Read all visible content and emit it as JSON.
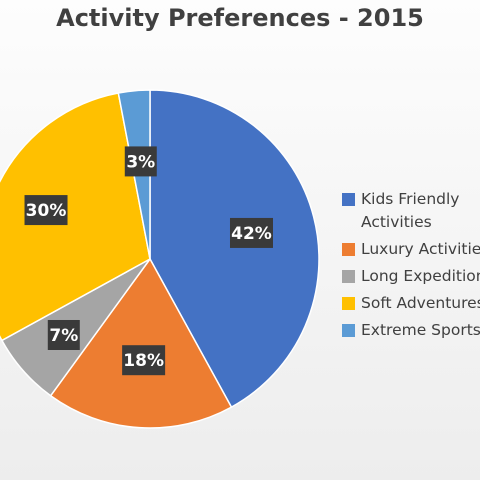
{
  "chart_data": {
    "type": "pie",
    "title": "Activity Preferences - 2015",
    "categories": [
      "Kids Friendly Activities",
      "Luxury Activities",
      "Long Expeditions",
      "Soft Adventures",
      "Extreme Sports"
    ],
    "values": [
      42,
      18,
      7,
      30,
      3
    ],
    "data_labels": [
      "42%",
      "18%",
      "7%",
      "30%",
      "3%"
    ],
    "colors": [
      "#4472C4",
      "#ED7D31",
      "#A5A5A5",
      "#FFC000",
      "#5B9BD5"
    ],
    "legend_position": "right",
    "start_angle": "12 o'clock",
    "direction": "clockwise"
  }
}
